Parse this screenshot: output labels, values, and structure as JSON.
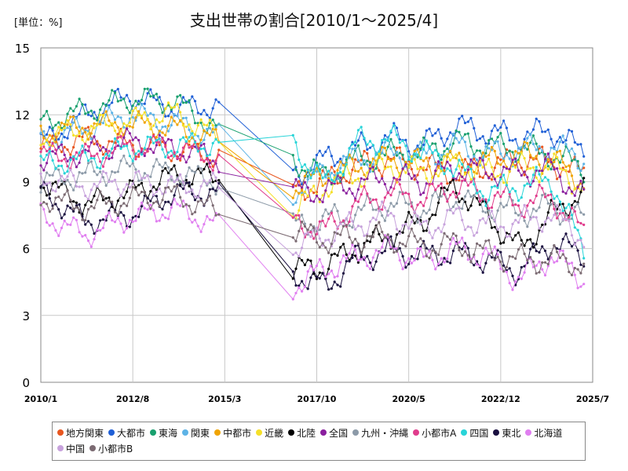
{
  "chart_data": {
    "type": "line",
    "title": "支出世帯の割合[2010/1～2025/4]",
    "unit_label": "[単位：%]",
    "ylim": [
      0,
      15
    ],
    "yticks": [
      0,
      3,
      6,
      9,
      12,
      15
    ],
    "xlim": [
      "2010/1",
      "2025/7"
    ],
    "xticks": [
      "2010/1",
      "2012/8",
      "2015/3",
      "2017/10",
      "2020/5",
      "2022/12",
      "2025/7"
    ],
    "grid": "on",
    "legend_position": "bottom",
    "gap": [
      "2015/1",
      "2017/2"
    ],
    "series": [
      {
        "name": "地方関東",
        "color": "#e8561f",
        "first": [
          10.5,
          10.9,
          10.7,
          10.4,
          10.2
        ],
        "after_gap": [
          8.6,
          9.0,
          9.7,
          10.0,
          9.7,
          9.4,
          9.6,
          10.0,
          9.9,
          9.3
        ]
      },
      {
        "name": "大都市",
        "color": "#1f5fd6",
        "first": [
          10.7,
          12.0,
          12.8,
          12.3,
          12.4
        ],
        "after_gap": [
          9.3,
          10.0,
          10.5,
          11.0,
          10.6,
          11.5,
          11.2,
          11.0,
          11.3,
          10.3
        ]
      },
      {
        "name": "東海",
        "color": "#18a06e",
        "first": [
          11.6,
          12.2,
          12.7,
          12.6,
          11.3
        ],
        "after_gap": [
          10.0,
          9.2,
          10.0,
          10.2,
          10.3,
          10.8,
          10.6,
          10.5,
          10.2,
          9.6
        ]
      },
      {
        "name": "関東",
        "color": "#5db3e6",
        "first": [
          10.8,
          11.4,
          12.0,
          11.6,
          11.0
        ],
        "after_gap": [
          8.5,
          9.5,
          10.0,
          10.3,
          10.1,
          10.6,
          10.2,
          10.4,
          10.6,
          10.0
        ]
      },
      {
        "name": "中都市",
        "color": "#f0a400",
        "first": [
          11.2,
          11.5,
          11.6,
          11.4,
          10.8
        ],
        "after_gap": [
          8.7,
          9.3,
          9.7,
          10.0,
          9.8,
          9.8,
          9.9,
          10.2,
          10.0,
          9.0
        ]
      },
      {
        "name": "近畿",
        "color": "#f5e02a",
        "first": [
          11.0,
          11.3,
          11.7,
          12.1,
          11.0
        ],
        "after_gap": [
          7.6,
          8.8,
          9.3,
          9.7,
          9.4,
          9.8,
          9.4,
          9.6,
          9.7,
          8.8
        ]
      },
      {
        "name": "北陸",
        "color": "#000000",
        "first": [
          9.0,
          8.0,
          8.5,
          9.3,
          9.2
        ],
        "after_gap": [
          5.0,
          5.2,
          6.0,
          6.6,
          7.2,
          8.8,
          7.5,
          6.0,
          7.5,
          8.6
        ]
      },
      {
        "name": "全国",
        "color": "#8a1f9e",
        "first": [
          10.0,
          10.3,
          10.8,
          10.5,
          10.0
        ],
        "after_gap": [
          8.5,
          8.6,
          8.9,
          9.2,
          9.0,
          9.6,
          9.5,
          9.4,
          9.6,
          8.3
        ]
      },
      {
        "name": "九州・沖縄",
        "color": "#8c9aa8",
        "first": [
          9.0,
          9.3,
          9.6,
          9.4,
          9.0
        ],
        "after_gap": [
          7.0,
          7.3,
          7.6,
          8.0,
          7.8,
          8.3,
          7.9,
          7.6,
          7.9,
          7.3
        ]
      },
      {
        "name": "小都市A",
        "color": "#e03c8c",
        "first": [
          10.2,
          10.1,
          10.6,
          10.5,
          10.0
        ],
        "after_gap": [
          7.2,
          6.8,
          8.0,
          8.5,
          8.2,
          8.8,
          8.4,
          8.0,
          8.3,
          6.7
        ]
      },
      {
        "name": "四国",
        "color": "#28d4d8",
        "first": [
          9.8,
          10.0,
          10.5,
          10.6,
          10.7
        ],
        "after_gap": [
          10.7,
          8.8,
          10.8,
          10.9,
          10.3,
          9.7,
          8.5,
          8.8,
          9.1,
          5.9
        ]
      },
      {
        "name": "東北",
        "color": "#1a1040",
        "first": [
          8.6,
          7.2,
          7.5,
          8.5,
          8.5
        ],
        "after_gap": [
          4.9,
          4.3,
          5.6,
          5.9,
          5.7,
          5.8,
          5.5,
          5.0,
          6.3,
          5.7
        ]
      },
      {
        "name": "北海道",
        "color": "#e07ef0",
        "first": [
          7.5,
          6.6,
          7.4,
          7.8,
          7.0
        ],
        "after_gap": [
          4.3,
          5.1,
          5.6,
          6.0,
          5.4,
          6.0,
          5.7,
          4.6,
          5.7,
          4.6
        ]
      },
      {
        "name": "中国",
        "color": "#c7a2dc",
        "first": [
          9.2,
          8.8,
          9.0,
          8.8,
          8.8
        ],
        "after_gap": [
          6.0,
          6.6,
          7.1,
          7.5,
          6.9,
          7.4,
          7.0,
          7.2,
          7.5,
          6.5
        ]
      },
      {
        "name": "小都市B",
        "color": "#7b6a72",
        "first": [
          8.3,
          7.8,
          8.2,
          8.4,
          7.6
        ],
        "after_gap": [
          6.8,
          6.4,
          6.5,
          6.5,
          6.1,
          6.2,
          5.8,
          5.5,
          5.5,
          5.3
        ]
      }
    ]
  }
}
